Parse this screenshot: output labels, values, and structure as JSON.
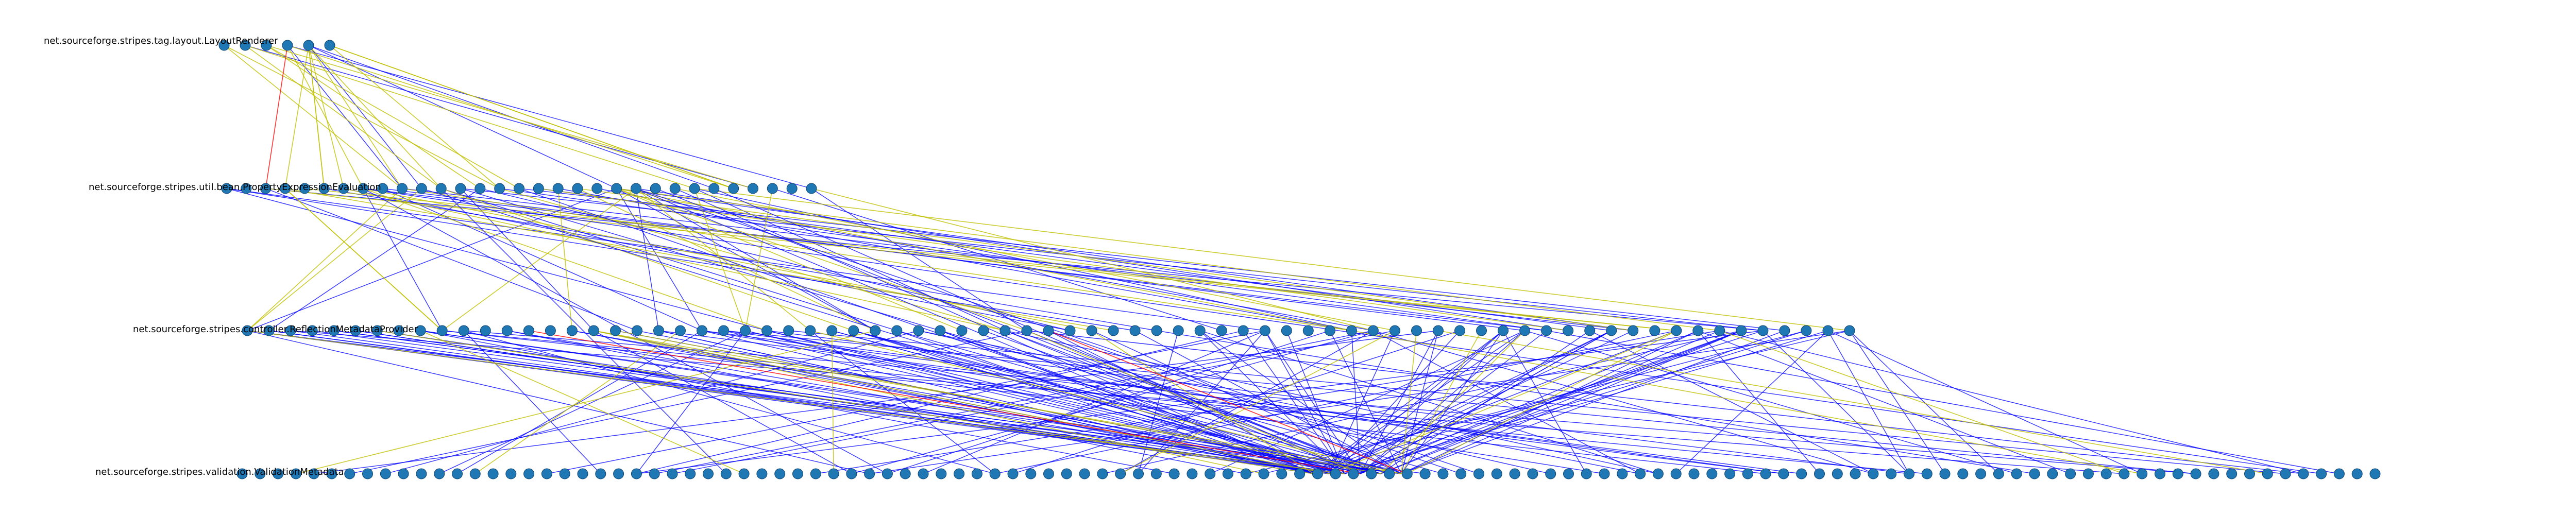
{
  "diagram": {
    "type": "layered-dependency-graph",
    "colors": {
      "background": "#ffffff",
      "node_fill": "#1f77b4",
      "label": "#000000",
      "edge_blue": "#0000ff",
      "edge_yellow": "#bfbf00",
      "edge_red": "#ff0000"
    },
    "visible_labels": [
      {
        "layer": 0,
        "text": "net.sourceforge.stripes.tag.layout.LayoutRenderer"
      },
      {
        "layer": 1,
        "text": "net.sourceforge.stripes.util.bean.PropertyExpressionEvaluation"
      },
      {
        "layer": 2,
        "text": "net.sourceforge.stripes.controller.ReflectionMetadataProvider"
      },
      {
        "layer": 3,
        "text": "net.sourceforge.stripes.validation.ValidationMetadata"
      }
    ],
    "layers": [
      {
        "node_count": 6
      },
      {
        "node_count": 31
      },
      {
        "node_count": 75
      },
      {
        "node_count": 120
      }
    ],
    "edge_groups": [
      {
        "from_layer": 0,
        "to_layer": 1,
        "color": "blue",
        "count": 6
      },
      {
        "from_layer": 0,
        "to_layer": 1,
        "color": "yellow",
        "count": 18
      },
      {
        "from_layer": 0,
        "to_layer": 1,
        "color": "red",
        "count": 1
      },
      {
        "from_layer": 1,
        "to_layer": 2,
        "color": "blue",
        "count": 34
      },
      {
        "from_layer": 1,
        "to_layer": 2,
        "color": "yellow",
        "count": 28
      },
      {
        "from_layer": 1,
        "to_layer": 3,
        "color": "blue",
        "count": 10
      },
      {
        "from_layer": 2,
        "to_layer": 3,
        "color": "blue",
        "count": 150
      },
      {
        "from_layer": 2,
        "to_layer": 3,
        "color": "yellow",
        "count": 22
      },
      {
        "from_layer": 2,
        "to_layer": 3,
        "color": "red",
        "count": 2
      }
    ]
  }
}
